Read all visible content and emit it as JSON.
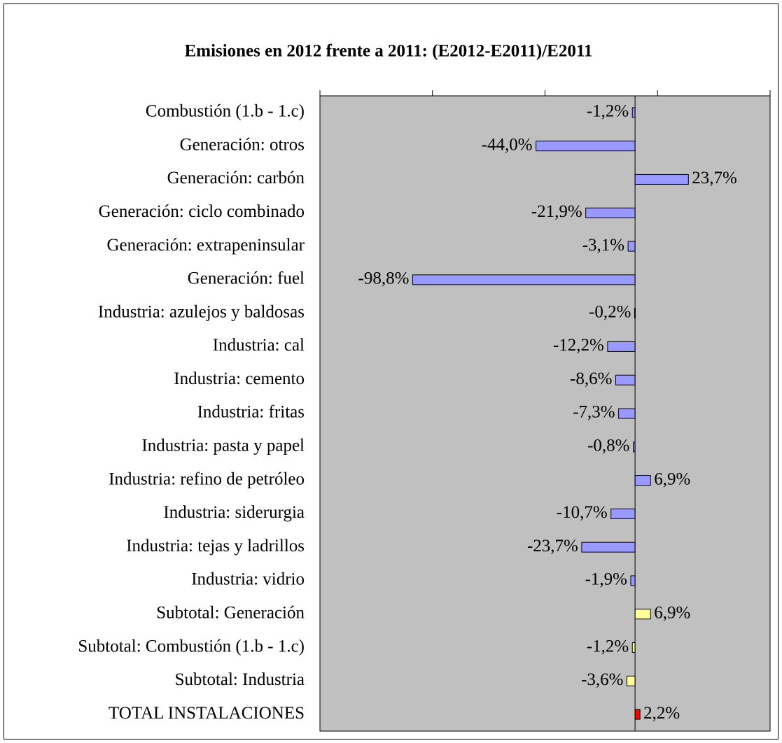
{
  "chart_data": {
    "type": "barh",
    "title": "Emisiones en 2012 frente a 2011: (E2012-E2011)/E2011",
    "categories": [
      "Combustión (1.b - 1.c)",
      "Generación: otros",
      "Generación: carbón",
      "Generación: ciclo combinado",
      "Generación: extrapeninsular",
      "Generación: fuel",
      "Industria: azulejos y baldosas",
      "Industria: cal",
      "Industria: cemento",
      "Industria: fritas",
      "Industria: pasta y papel",
      "Industria: refino de petróleo",
      "Industria: siderurgia",
      "Industria: tejas y ladrillos",
      "Industria: vidrio",
      "Subtotal: Generación",
      "Subtotal: Combustión (1.b - 1.c)",
      "Subtotal: Industria",
      "TOTAL INSTALACIONES"
    ],
    "values": [
      -1.2,
      -44.0,
      23.7,
      -21.9,
      -3.1,
      -98.8,
      -0.2,
      -12.2,
      -8.6,
      -7.3,
      -0.8,
      6.9,
      -10.7,
      -23.7,
      -1.9,
      6.9,
      -1.2,
      -3.6,
      2.2
    ],
    "value_labels": [
      "-1,2%",
      "-44,0%",
      "23,7%",
      "-21,9%",
      "-3,1%",
      "-98,8%",
      "-0,2%",
      "-12,2%",
      "-8,6%",
      "-7,3%",
      "-0,8%",
      "6,9%",
      "-10,7%",
      "-23,7%",
      "-1,9%",
      "6,9%",
      "-1,2%",
      "-3,6%",
      "2,2%"
    ],
    "colors": [
      "#9999ff",
      "#9999ff",
      "#9999ff",
      "#9999ff",
      "#9999ff",
      "#9999ff",
      "#9999ff",
      "#9999ff",
      "#9999ff",
      "#9999ff",
      "#9999ff",
      "#9999ff",
      "#9999ff",
      "#9999ff",
      "#9999ff",
      "#ffff99",
      "#ffff99",
      "#ffff99",
      "#ff0000"
    ],
    "plot_background": "#c0c0c0",
    "xlim": [
      -140,
      60
    ],
    "xticks": [
      -140,
      -90,
      -40,
      10,
      60
    ]
  }
}
